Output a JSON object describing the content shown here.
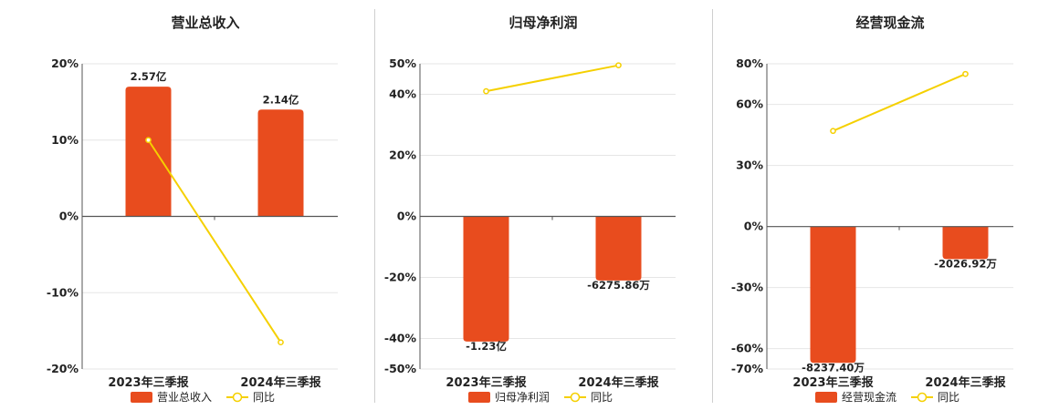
{
  "colors": {
    "bar": "#E84C1E",
    "line": "#F5D000",
    "grid": "#e6e6e6",
    "axis": "#555555"
  },
  "legend": {
    "line_label": "同比"
  },
  "chart_data": [
    {
      "type": "bar",
      "title": "营业总收入",
      "categories": [
        "2023年三季报",
        "2024年三季报"
      ],
      "series": [
        {
          "name": "营业总收入",
          "type": "bar",
          "values": [
            17,
            14
          ],
          "labels": [
            "2.57亿",
            "2.14亿"
          ]
        },
        {
          "name": "同比",
          "type": "line",
          "values": [
            10,
            -16.5
          ]
        }
      ],
      "yticks": [
        -20,
        -10,
        0,
        10,
        20
      ],
      "ytick_labels": [
        "-20%",
        "-10%",
        "0%",
        "10%",
        "20%"
      ],
      "ylim": [
        -20,
        20
      ],
      "legend_position": "bottom",
      "grid": true
    },
    {
      "type": "bar",
      "title": "归母净利润",
      "categories": [
        "2023年三季报",
        "2024年三季报"
      ],
      "series": [
        {
          "name": "归母净利润",
          "type": "bar",
          "values": [
            -41,
            -21
          ],
          "labels": [
            "-1.23亿",
            "-6275.86万"
          ]
        },
        {
          "name": "同比",
          "type": "line",
          "values": [
            41,
            49.5
          ]
        }
      ],
      "yticks": [
        -50,
        -40,
        -20,
        0,
        20,
        40,
        50
      ],
      "ytick_labels": [
        "-50%",
        "-40%",
        "-20%",
        "0%",
        "20%",
        "40%",
        "50%"
      ],
      "ylim": [
        -50,
        50
      ],
      "legend_position": "bottom",
      "grid": true
    },
    {
      "type": "bar",
      "title": "经营现金流",
      "categories": [
        "2023年三季报",
        "2024年三季报"
      ],
      "series": [
        {
          "name": "经营现金流",
          "type": "bar",
          "values": [
            -67,
            -16
          ],
          "labels": [
            "-8237.40万",
            "-2026.92万"
          ]
        },
        {
          "name": "同比",
          "type": "line",
          "values": [
            47,
            75
          ]
        }
      ],
      "yticks": [
        -70,
        -60,
        -30,
        0,
        30,
        60,
        80
      ],
      "ytick_labels": [
        "-70%",
        "-60%",
        "-30%",
        "0%",
        "30%",
        "60%",
        "80%"
      ],
      "ylim": [
        -70,
        80
      ],
      "legend_position": "bottom",
      "grid": true
    }
  ]
}
